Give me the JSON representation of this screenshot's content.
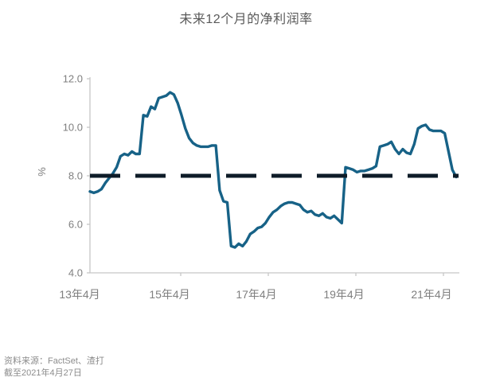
{
  "header": {
    "title": "未来12个月的净利润率"
  },
  "footer": {
    "source": "资料来源：FactSet、渣打",
    "as_of": "截至2021年4月27日"
  },
  "colors": {
    "line": "#176287",
    "reference": "#0e1c28",
    "axis": "#c6c6c6",
    "tick_label": "#7f7f7f",
    "title": "#595959",
    "footer": "#8c8c8c",
    "background": "#ffffff"
  },
  "chart_data": {
    "type": "line",
    "title": "未来12个月的净利润率",
    "xlabel": "",
    "ylabel": "%",
    "ylim": [
      4.0,
      12.0
    ],
    "y_tick_values": [
      12.0,
      10.0,
      8.0,
      6.0,
      4.0
    ],
    "y_tick_labels": [
      "12.0",
      "10.0",
      "8.0",
      "6.0",
      "4.0"
    ],
    "x_tick_labels": [
      "13年4月",
      "15年4月",
      "17年4月",
      "19年4月",
      "21年4月"
    ],
    "x_start": "2013年4月",
    "x_end": "2021年4月",
    "frequency": "monthly",
    "grid": false,
    "legend": "none",
    "reference_line": {
      "value": 8.0,
      "style": "dashed",
      "color": "#0e1c28"
    },
    "series": [
      {
        "name": "未来12个月的净利润率",
        "color": "#176287",
        "values": [
          7.35,
          7.3,
          7.35,
          7.45,
          7.7,
          7.9,
          8.1,
          8.35,
          8.8,
          8.9,
          8.85,
          9.0,
          8.9,
          8.9,
          10.5,
          10.45,
          10.85,
          10.75,
          11.2,
          11.25,
          11.3,
          11.44,
          11.35,
          11.0,
          10.5,
          9.95,
          9.55,
          9.35,
          9.25,
          9.2,
          9.2,
          9.2,
          9.25,
          9.25,
          7.4,
          6.95,
          6.9,
          5.1,
          5.05,
          5.2,
          5.1,
          5.3,
          5.6,
          5.7,
          5.85,
          5.9,
          6.05,
          6.3,
          6.5,
          6.6,
          6.75,
          6.85,
          6.9,
          6.9,
          6.85,
          6.8,
          6.6,
          6.5,
          6.55,
          6.4,
          6.35,
          6.45,
          6.3,
          6.25,
          6.35,
          6.2,
          6.05,
          8.35,
          8.3,
          8.25,
          8.15,
          8.2,
          8.2,
          8.25,
          8.3,
          8.4,
          9.2,
          9.25,
          9.3,
          9.4,
          9.1,
          8.9,
          9.1,
          8.95,
          8.9,
          9.3,
          9.95,
          10.05,
          10.1,
          9.9,
          9.85,
          9.85,
          9.85,
          9.75,
          9.0,
          8.25,
          7.95
        ]
      }
    ]
  }
}
